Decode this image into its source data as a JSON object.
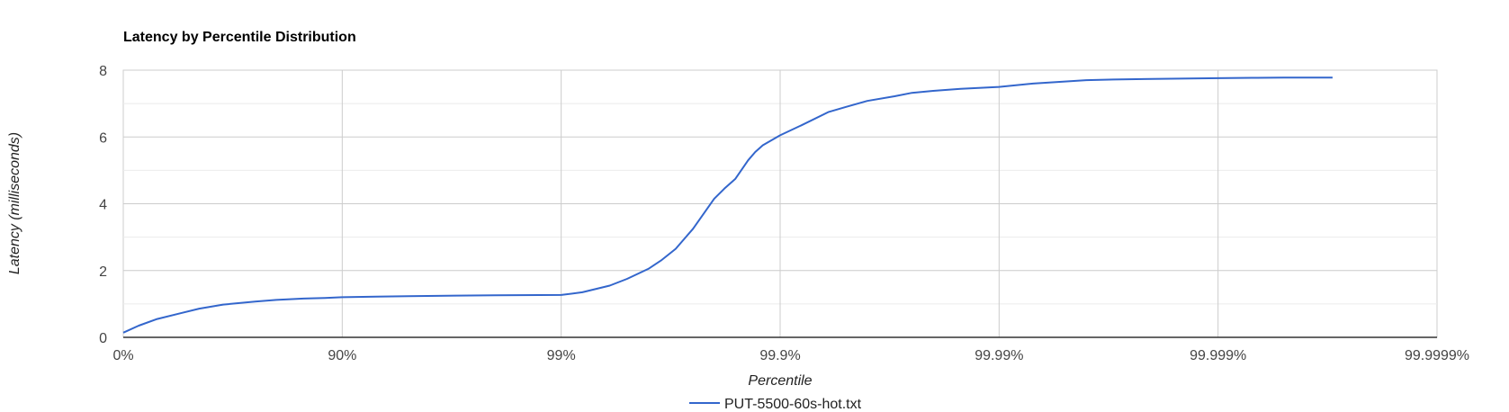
{
  "chart_data": {
    "type": "line",
    "title": "Latency by Percentile Distribution",
    "xlabel": "Percentile",
    "ylabel": "Latency (milliseconds)",
    "x_scale": "log-nines",
    "x_ticks": [
      "0%",
      "90%",
      "99%",
      "99.9%",
      "99.99%",
      "99.999%",
      "99.9999%"
    ],
    "y_ticks": [
      "0",
      "2",
      "4",
      "6",
      "8"
    ],
    "ylim": [
      0,
      8
    ],
    "grid": true,
    "legend_position": "bottom",
    "series": [
      {
        "name": "PUT-5500-60s-hot.txt",
        "color": "#3366cc",
        "x": [
          0,
          15,
          30,
          45,
          55,
          65,
          75,
          80,
          85,
          88,
          90,
          93,
          95,
          97,
          98,
          99,
          99.2,
          99.4,
          99.5,
          99.6,
          99.65,
          99.7,
          99.75,
          99.8,
          99.82,
          99.84,
          99.86,
          99.87,
          99.88,
          99.9,
          99.92,
          99.94,
          99.95,
          99.96,
          99.97,
          99.975,
          99.98,
          99.985,
          99.99,
          99.993,
          99.995,
          99.996,
          99.997,
          99.998,
          99.999,
          99.9993,
          99.9995,
          99.9997
        ],
        "y": [
          0.14,
          0.35,
          0.55,
          0.72,
          0.86,
          0.98,
          1.07,
          1.12,
          1.16,
          1.18,
          1.2,
          1.22,
          1.23,
          1.25,
          1.26,
          1.27,
          1.35,
          1.55,
          1.75,
          2.05,
          2.3,
          2.65,
          3.25,
          4.15,
          4.45,
          4.75,
          5.3,
          5.55,
          5.75,
          6.05,
          6.35,
          6.75,
          6.9,
          7.08,
          7.22,
          7.32,
          7.38,
          7.44,
          7.5,
          7.6,
          7.66,
          7.7,
          7.72,
          7.74,
          7.76,
          7.77,
          7.78,
          7.78
        ]
      }
    ]
  }
}
